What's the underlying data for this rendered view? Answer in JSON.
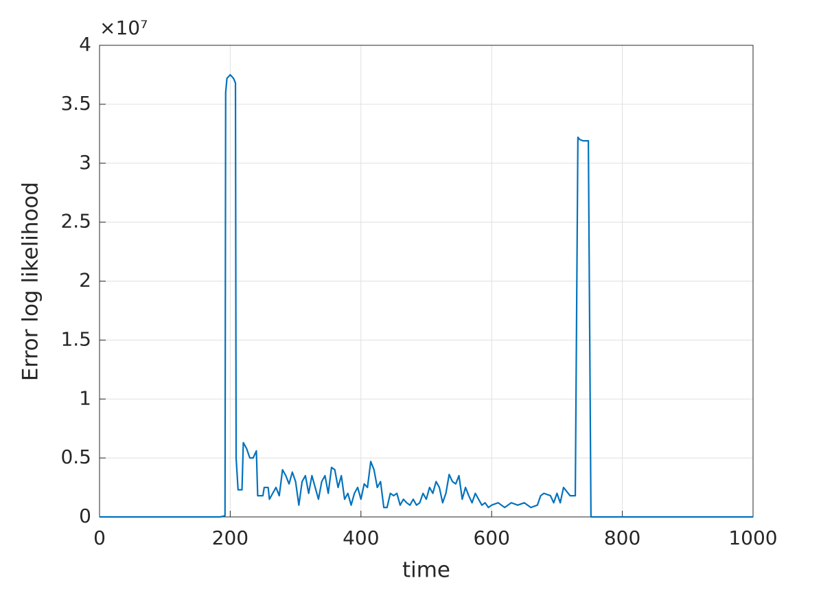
{
  "chart_data": {
    "type": "line",
    "xlabel": "time",
    "ylabel": "Error log likelihood",
    "y_exponent": "×10⁷",
    "x": [
      0,
      185,
      192,
      193,
      195,
      200,
      205,
      208,
      209,
      212,
      218,
      220,
      225,
      230,
      235,
      240,
      242,
      250,
      252,
      258,
      260,
      265,
      270,
      275,
      280,
      285,
      290,
      295,
      300,
      305,
      310,
      315,
      320,
      325,
      330,
      335,
      340,
      345,
      350,
      355,
      360,
      365,
      370,
      375,
      380,
      385,
      390,
      395,
      400,
      405,
      410,
      415,
      420,
      425,
      430,
      435,
      440,
      445,
      450,
      455,
      460,
      465,
      470,
      475,
      480,
      485,
      490,
      495,
      500,
      505,
      510,
      515,
      520,
      525,
      530,
      535,
      540,
      545,
      550,
      555,
      560,
      565,
      570,
      575,
      580,
      585,
      590,
      595,
      600,
      610,
      620,
      630,
      640,
      650,
      660,
      670,
      675,
      680,
      690,
      695,
      700,
      705,
      710,
      720,
      728,
      730,
      732,
      735,
      740,
      748,
      750,
      752,
      1000
    ],
    "series": [
      {
        "name": "error",
        "color": "#0072bd",
        "values": [
          0,
          0,
          0.01,
          3.6,
          3.72,
          3.75,
          3.72,
          3.68,
          0.5,
          0.23,
          0.23,
          0.63,
          0.58,
          0.5,
          0.5,
          0.56,
          0.18,
          0.18,
          0.25,
          0.25,
          0.15,
          0.2,
          0.25,
          0.18,
          0.4,
          0.35,
          0.28,
          0.38,
          0.3,
          0.1,
          0.3,
          0.35,
          0.2,
          0.35,
          0.25,
          0.15,
          0.3,
          0.35,
          0.2,
          0.42,
          0.4,
          0.25,
          0.35,
          0.15,
          0.2,
          0.1,
          0.2,
          0.25,
          0.15,
          0.28,
          0.25,
          0.47,
          0.4,
          0.25,
          0.3,
          0.08,
          0.08,
          0.2,
          0.18,
          0.2,
          0.1,
          0.15,
          0.12,
          0.1,
          0.15,
          0.1,
          0.12,
          0.2,
          0.15,
          0.25,
          0.2,
          0.3,
          0.25,
          0.12,
          0.2,
          0.36,
          0.3,
          0.28,
          0.35,
          0.15,
          0.25,
          0.18,
          0.12,
          0.2,
          0.15,
          0.1,
          0.12,
          0.08,
          0.1,
          0.12,
          0.08,
          0.12,
          0.1,
          0.12,
          0.08,
          0.1,
          0.18,
          0.2,
          0.18,
          0.12,
          0.2,
          0.12,
          0.25,
          0.18,
          0.18,
          1.7,
          3.22,
          3.2,
          3.19,
          3.19,
          1.6,
          0,
          0
        ]
      }
    ],
    "xlim": [
      0,
      1000
    ],
    "xticks": [
      0,
      200,
      400,
      600,
      800,
      1000
    ],
    "ylim": [
      0,
      4
    ],
    "yticks": [
      0,
      0.5,
      1,
      1.5,
      2,
      2.5,
      3,
      3.5,
      4
    ],
    "grid": true
  }
}
